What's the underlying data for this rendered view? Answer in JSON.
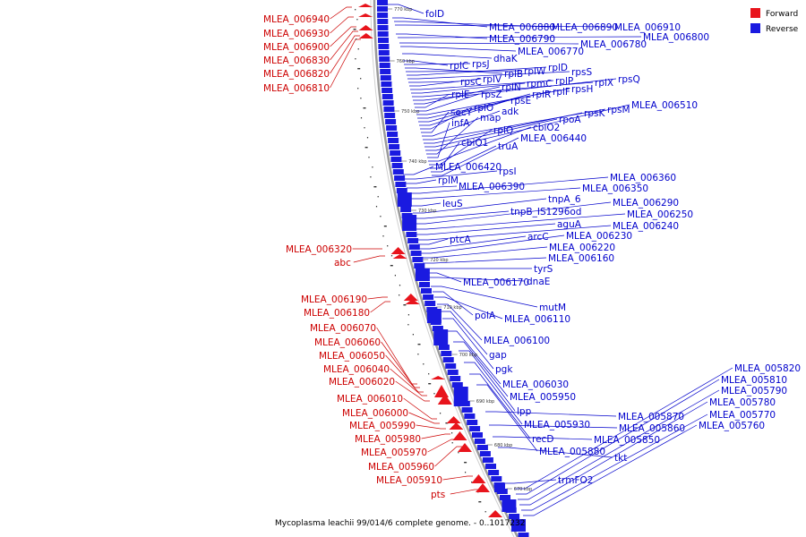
{
  "title": "Mycoplasma leachii 99/014/6 complete genome. - 0..1017232",
  "colors": {
    "forward": "#e8141c",
    "reverse": "#1a1ae0",
    "backbone": "#9a9a9a",
    "leader": "#0000cc",
    "forward_leader": "#cc0000"
  },
  "legend": [
    {
      "key": "forward",
      "label": "Forward"
    },
    {
      "key": "reverse",
      "label": "Reverse"
    }
  ],
  "kbp_ticks": [
    "770 kbp",
    "760 kbp",
    "750 kbp",
    "740 kbp",
    "730 kbp",
    "720 kbp",
    "710 kbp",
    "700 kbp",
    "690 kbp",
    "680 kbp",
    "670 kbp"
  ],
  "forward_labels": [
    "MLEA_006940",
    "MLEA_006930",
    "MLEA_006900",
    "MLEA_006830",
    "MLEA_006820",
    "MLEA_006810",
    "MLEA_006320",
    "abc",
    "MLEA_006190",
    "MLEA_006180",
    "MLEA_006070",
    "MLEA_006060",
    "MLEA_006050",
    "MLEA_006040",
    "MLEA_006020",
    "MLEA_006010",
    "MLEA_006000",
    "MLEA_005990",
    "MLEA_005980",
    "MLEA_005970",
    "MLEA_005960",
    "MLEA_005910",
    "pts"
  ],
  "reverse_labels": [
    "folD",
    "MLEA_006880",
    "MLEA_006890",
    "MLEA_006910",
    "MLEA_006790",
    "MLEA_006800",
    "MLEA_006780",
    "MLEA_006770",
    "dhaK",
    "rplC",
    "rpsJ",
    "rplB",
    "rplW",
    "rplD",
    "rpsS",
    "rpsC",
    "rplV",
    "rplP",
    "rpmC",
    "rplX",
    "rpsQ",
    "rplN",
    "rplE",
    "rpsZ",
    "rpsH",
    "rplF",
    "rplR",
    "rpsE",
    "rplO",
    "secY",
    "adk",
    "rpsM",
    "rpsK",
    "rpoA",
    "MLEA_006510",
    "map",
    "infA",
    "cbiO2",
    "rplQ",
    "cbiO1",
    "truA",
    "MLEA_006440",
    "MLEA_006420",
    "rpsI",
    "rplM",
    "MLEA_006390",
    "MLEA_006360",
    "MLEA_006350",
    "leuS",
    "tnpA_6",
    "tnpB_IS1296od",
    "MLEA_006290",
    "MLEA_006250",
    "aguA",
    "MLEA_006240",
    "ptcA",
    "arcC",
    "MLEA_006230",
    "MLEA_006220",
    "MLEA_006160",
    "tyrS",
    "MLEA_006170",
    "dnaE",
    "mutM",
    "polA",
    "MLEA_006110",
    "MLEA_006100",
    "gap",
    "pgk",
    "MLEA_006030",
    "MLEA_005950",
    "lpp",
    "MLEA_005930",
    "recD",
    "MLEA_005880",
    "MLEA_005870",
    "MLEA_005860",
    "MLEA_005850",
    "tkt",
    "trmFO2",
    "MLEA_005820",
    "MLEA_005810",
    "MLEA_005790",
    "MLEA_005780",
    "MLEA_005770",
    "MLEA_005760"
  ]
}
